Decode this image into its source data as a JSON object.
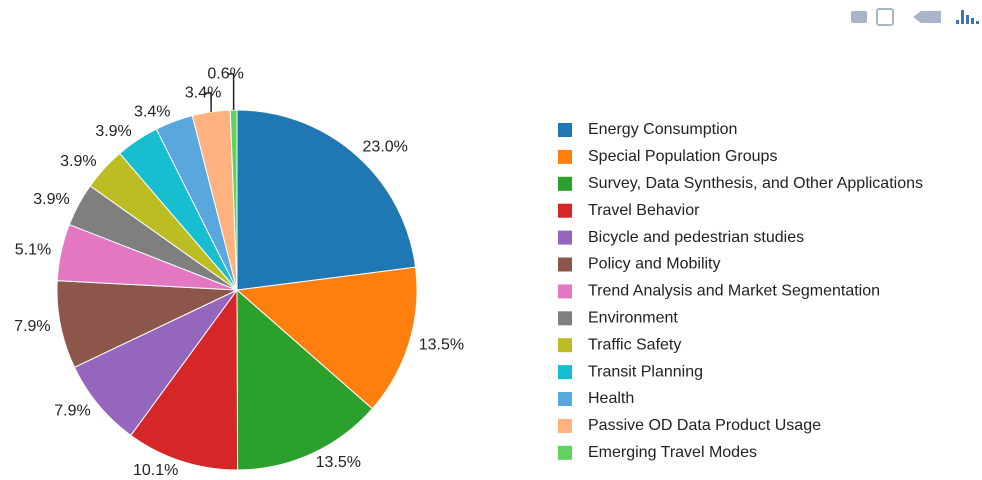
{
  "chart_data": {
    "type": "pie",
    "categories": [
      "Energy Consumption",
      "Special Population Groups",
      "Survey, Data Synthesis, and Other Applications",
      "Travel Behavior",
      "Bicycle and pedestrian studies",
      "Policy and Mobility",
      "Trend Analysis and Market Segmentation",
      "Environment",
      "Traffic Safety",
      "Transit Planning",
      "Health",
      "Passive OD Data Product Usage",
      "Emerging Travel Modes"
    ],
    "values": [
      23.0,
      13.5,
      13.5,
      10.1,
      7.9,
      7.9,
      5.1,
      3.9,
      3.9,
      3.9,
      3.4,
      3.4,
      0.6
    ],
    "value_labels": [
      "23.0%",
      "13.5%",
      "13.5%",
      "10.1%",
      "7.9%",
      "7.9%",
      "5.1%",
      "3.9%",
      "3.9%",
      "3.9%",
      "3.4%",
      "3.4%",
      "0.6%"
    ],
    "colors": [
      "#1f77b4",
      "#ff7f0e",
      "#2ca02c",
      "#d62728",
      "#9467bd",
      "#8c564b",
      "#e377c2",
      "#7f7f7f",
      "#bcbd22",
      "#17becf",
      "#5aa7e0",
      "#ffb27f",
      "#5fd35f"
    ],
    "legend": "right"
  }
}
